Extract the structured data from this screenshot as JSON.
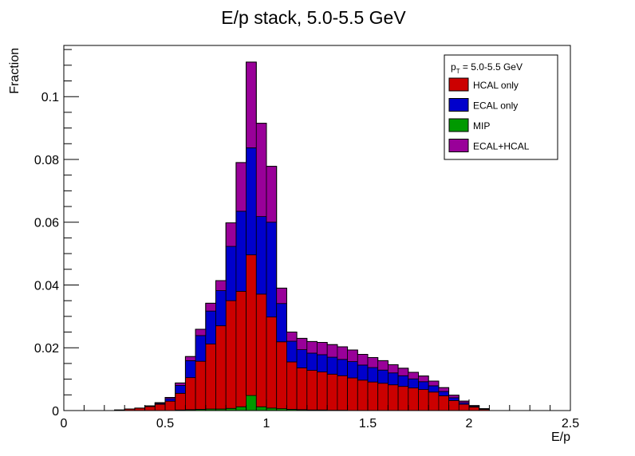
{
  "chart_data": {
    "type": "bar",
    "title": "E/p stack, 5.0-5.5 GeV",
    "xlabel": "E/p",
    "ylabel": "Fraction",
    "xlim": [
      0,
      2.5
    ],
    "ylim": [
      0,
      0.1163
    ],
    "x_ticks": [
      "0",
      "0.5",
      "1",
      "1.5",
      "2",
      "2.5"
    ],
    "y_ticks": [
      "0",
      "0.02",
      "0.04",
      "0.06",
      "0.08",
      "0.1"
    ],
    "grid": false,
    "stacked": true,
    "legend": {
      "position": "top-right",
      "header_main": "p",
      "header_sub": "T",
      "header_rest": " = 5.0-5.5 GeV"
    },
    "bins": {
      "start": 0.2,
      "width": 0.05,
      "count": 38
    },
    "series": [
      {
        "name": "MIP",
        "color": "#009900",
        "values": [
          0,
          0,
          0,
          0,
          0,
          0,
          0,
          0.0002,
          0.0003,
          0.0004,
          0.0005,
          0.0005,
          0.0007,
          0.0012,
          0.0048,
          0.0012,
          0.0008,
          0.0006,
          0.0004,
          0.0003,
          0.0002,
          0.0002,
          0.0001,
          0.0001,
          0,
          0,
          0,
          0,
          0,
          0,
          0,
          0,
          0,
          0,
          0,
          0,
          0,
          0
        ]
      },
      {
        "name": "HCAL only",
        "color": "#cc0000",
        "values": [
          0,
          0.0002,
          0.0005,
          0.0008,
          0.0013,
          0.002,
          0.003,
          0.0053,
          0.0102,
          0.0153,
          0.0207,
          0.0265,
          0.0343,
          0.0368,
          0.0448,
          0.0359,
          0.029,
          0.0213,
          0.0151,
          0.0133,
          0.0126,
          0.0121,
          0.0115,
          0.011,
          0.0104,
          0.0097,
          0.0091,
          0.0087,
          0.0082,
          0.0077,
          0.0072,
          0.0067,
          0.0059,
          0.0047,
          0.0032,
          0.002,
          0.0011,
          0.0004
        ]
      },
      {
        "name": "ECAL only",
        "color": "#0000cc",
        "values": [
          0,
          0,
          0,
          0,
          0.0001,
          0.0003,
          0.0008,
          0.0025,
          0.0054,
          0.0082,
          0.0105,
          0.0112,
          0.0173,
          0.0255,
          0.0341,
          0.0247,
          0.0302,
          0.0122,
          0.0066,
          0.0058,
          0.0055,
          0.0055,
          0.0054,
          0.0052,
          0.0052,
          0.0048,
          0.0046,
          0.0042,
          0.0038,
          0.0034,
          0.0029,
          0.0025,
          0.002,
          0.0014,
          0.0009,
          0.0005,
          0.0002,
          0.0001
        ]
      },
      {
        "name": "ECAL+HCAL",
        "color": "#990099",
        "values": [
          0,
          0,
          0,
          0,
          0.0001,
          0.0002,
          0.0004,
          0.0008,
          0.0013,
          0.002,
          0.0025,
          0.0032,
          0.0075,
          0.0155,
          0.0273,
          0.0297,
          0.0178,
          0.0049,
          0.0029,
          0.0036,
          0.0037,
          0.0039,
          0.004,
          0.004,
          0.0037,
          0.0034,
          0.0032,
          0.003,
          0.0026,
          0.0024,
          0.0021,
          0.0018,
          0.0015,
          0.0012,
          0.0008,
          0.0005,
          0.0003,
          0.0001
        ]
      }
    ]
  }
}
